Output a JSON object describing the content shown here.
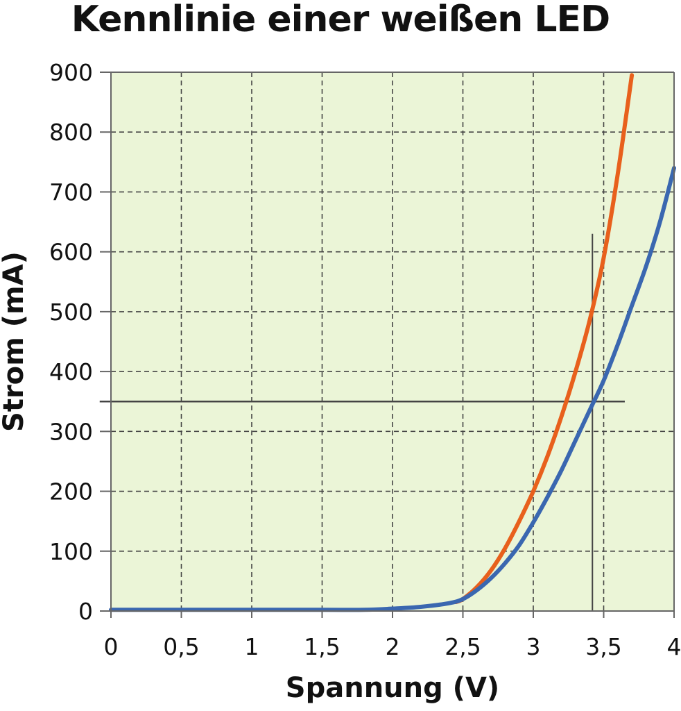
{
  "chart_data": {
    "type": "line",
    "title": "Kennlinie einer weißen LED",
    "xlabel": "Spannung (V)",
    "ylabel": "Strom (mA)",
    "xlim": [
      0,
      4
    ],
    "ylim": [
      0,
      900
    ],
    "x_ticks": [
      0,
      0.5,
      1,
      1.5,
      2,
      2.5,
      3,
      3.5,
      4
    ],
    "x_tick_labels": [
      "0",
      "0,5",
      "1",
      "1,5",
      "2",
      "2,5",
      "3",
      "3,5",
      "4"
    ],
    "y_ticks": [
      0,
      100,
      200,
      300,
      400,
      500,
      600,
      700,
      800,
      900
    ],
    "y_tick_labels": [
      "0",
      "100",
      "200",
      "300",
      "400",
      "500",
      "600",
      "700",
      "800",
      "900"
    ],
    "grid": true,
    "series": [
      {
        "color": "#e8601c",
        "x": [
          2.45,
          2.5,
          2.6,
          2.7,
          2.8,
          2.9,
          3.0,
          3.1,
          3.2,
          3.3,
          3.4,
          3.5,
          3.6,
          3.7
        ],
        "y": [
          15,
          20,
          40,
          68,
          105,
          150,
          200,
          258,
          325,
          400,
          485,
          590,
          730,
          895
        ]
      },
      {
        "color": "#3a67b0",
        "x": [
          0,
          0.5,
          1,
          1.5,
          1.8,
          2.0,
          2.2,
          2.4,
          2.5,
          2.6,
          2.7,
          2.8,
          2.9,
          3.0,
          3.1,
          3.2,
          3.3,
          3.4,
          3.5,
          3.6,
          3.7,
          3.8,
          3.9,
          4.0
        ],
        "y": [
          2,
          2,
          2,
          2,
          2,
          4,
          7,
          13,
          20,
          35,
          55,
          80,
          110,
          148,
          190,
          235,
          285,
          335,
          385,
          445,
          510,
          575,
          650,
          740
        ]
      }
    ],
    "reference_lines": [
      {
        "orientation": "horizontal",
        "value": 350,
        "from": -0.08,
        "to": 3.65,
        "color": "#444444"
      },
      {
        "orientation": "vertical",
        "value": 3.42,
        "from": 0,
        "to": 630,
        "color": "#444444"
      }
    ],
    "colors": {
      "plot_background": "#ebf5d7",
      "grid": "#444444",
      "axes": "#666666"
    }
  }
}
